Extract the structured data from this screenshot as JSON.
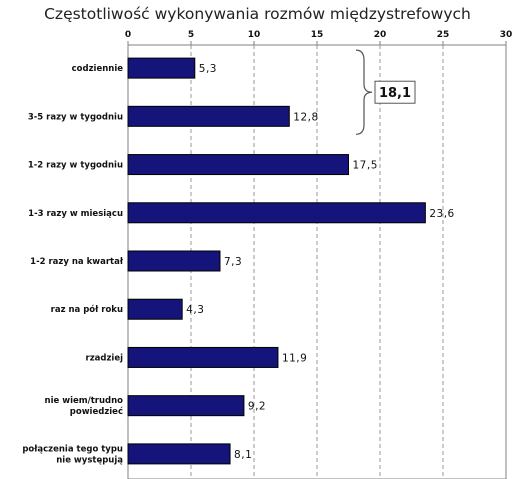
{
  "chart_data": {
    "type": "bar",
    "orientation": "horizontal",
    "title": "Częstotliwość wykonywania rozmów międzystrefowych",
    "categories": [
      "codziennie",
      "3-5 razy w tygodniu",
      "1-2 razy w tygodniu",
      "1-3 razy w miesiącu",
      "1-2 razy na kwartał",
      "raz na pół roku",
      "rzadziej",
      "nie wiem/trudno powiedzieć",
      "połączenia tego typu nie występują"
    ],
    "values": [
      5.3,
      12.8,
      17.5,
      23.6,
      7.3,
      4.3,
      11.9,
      9.2,
      8.1
    ],
    "value_labels": [
      "5,3",
      "12,8",
      "17,5",
      "23,6",
      "7,3",
      "4,3",
      "11,9",
      "9,2",
      "8,1"
    ],
    "xlim": [
      0,
      30
    ],
    "xticks": [
      "0",
      "5",
      "10",
      "15",
      "20",
      "25",
      "30"
    ],
    "x_axis_position": "top",
    "grid": "vertical dashed",
    "bar_color": "#14147a",
    "annotation": {
      "text": "18,1",
      "brace_groups": [
        "codziennie",
        "3-5 razy w tygodniu"
      ]
    }
  }
}
